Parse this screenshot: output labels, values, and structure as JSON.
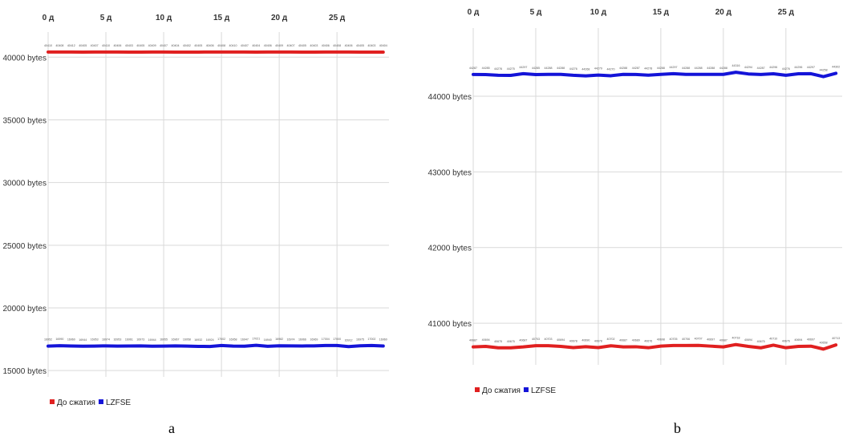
{
  "chart_data": [
    {
      "type": "line",
      "panel_label": "a",
      "x_tick_labels": [
        "0 д",
        "5 д",
        "10 д",
        "15 д",
        "20 д",
        "25 д"
      ],
      "x_tick_values": [
        0,
        5,
        10,
        15,
        20,
        25
      ],
      "xlim": [
        0,
        29.5
      ],
      "y_tick_labels": [
        "40000 bytes",
        "35000 bytes",
        "30000 bytes",
        "25000 bytes",
        "20000 bytes",
        "15000 bytes"
      ],
      "y_tick_values": [
        40000,
        35000,
        30000,
        25000,
        20000,
        15000
      ],
      "ylim": [
        14500,
        42000
      ],
      "grid": true,
      "legend_position": "bottom-left",
      "x": [
        0,
        1,
        2,
        3,
        4,
        5,
        6,
        7,
        8,
        9,
        10,
        11,
        12,
        13,
        14,
        15,
        16,
        17,
        18,
        19,
        20,
        21,
        22,
        23,
        24,
        25,
        26,
        27,
        28,
        29
      ],
      "series": [
        {
          "name": "До сжатия",
          "color": "#e02020",
          "values": [
            40410,
            40408,
            40412,
            40405,
            40407,
            40410,
            40406,
            40403,
            40405,
            40409,
            40407,
            40404,
            40402,
            40405,
            40406,
            40408,
            40410,
            40407,
            40404,
            40406,
            40409,
            40407,
            40405,
            40403,
            40406,
            40408,
            40406,
            40405,
            40403,
            40404
          ]
        },
        {
          "name": "LZFSE",
          "color": "#1414d8",
          "values": [
            16952,
            16990,
            16960,
            16944,
            16953,
            16974,
            16953,
            16961,
            16973,
            16944,
            16955,
            16967,
            16958,
            16932,
            16924,
            17002,
            16958,
            16947,
            17021,
            16940,
            16982,
            16974,
            16966,
            16969,
            17004,
            17000,
            16912,
            16975,
            17002,
            16960
          ]
        }
      ]
    },
    {
      "type": "line",
      "panel_label": "b",
      "x_tick_labels": [
        "0 д",
        "5 д",
        "10 д",
        "15 д",
        "20 д",
        "25 д"
      ],
      "x_tick_values": [
        0,
        5,
        10,
        15,
        20,
        25
      ],
      "xlim": [
        0,
        29.5
      ],
      "y_tick_labels": [
        "44000 bytes",
        "43000 bytes",
        "42000 bytes",
        "41000 bytes"
      ],
      "y_tick_values": [
        44000,
        43000,
        42000,
        41000
      ],
      "ylim": [
        40450,
        44900
      ],
      "grid": true,
      "legend_position": "bottom-left",
      "x": [
        0,
        1,
        2,
        3,
        4,
        5,
        6,
        7,
        8,
        9,
        10,
        11,
        12,
        13,
        14,
        15,
        16,
        17,
        18,
        19,
        20,
        21,
        22,
        23,
        24,
        25,
        26,
        27,
        28,
        29
      ],
      "series": [
        {
          "name": "До сжатия",
          "color": "#e02020",
          "values": [
            40687,
            40694,
            40675,
            40675,
            40687,
            40703,
            40703,
            40694,
            40678,
            40690,
            40678,
            40702,
            40687,
            40689,
            40676,
            40698,
            40705,
            40706,
            40707,
            40697,
            40687,
            40718,
            40694,
            40675,
            40710,
            40676,
            40694,
            40697,
            40658,
            40713
          ]
        },
        {
          "name": "LZFSE",
          "color": "#1414d8",
          "values": [
            44287,
            44285,
            44276,
            44275,
            44297,
            44285,
            44288,
            44288,
            44276,
            44268,
            44279,
            44270,
            44288,
            44287,
            44278,
            44288,
            44297,
            44288,
            44288,
            44288,
            44288,
            44316,
            44294,
            44287,
            44296,
            44276,
            44296,
            44297,
            44258,
            44302
          ]
        }
      ]
    }
  ],
  "subfigure_labels": [
    "a",
    "b"
  ]
}
